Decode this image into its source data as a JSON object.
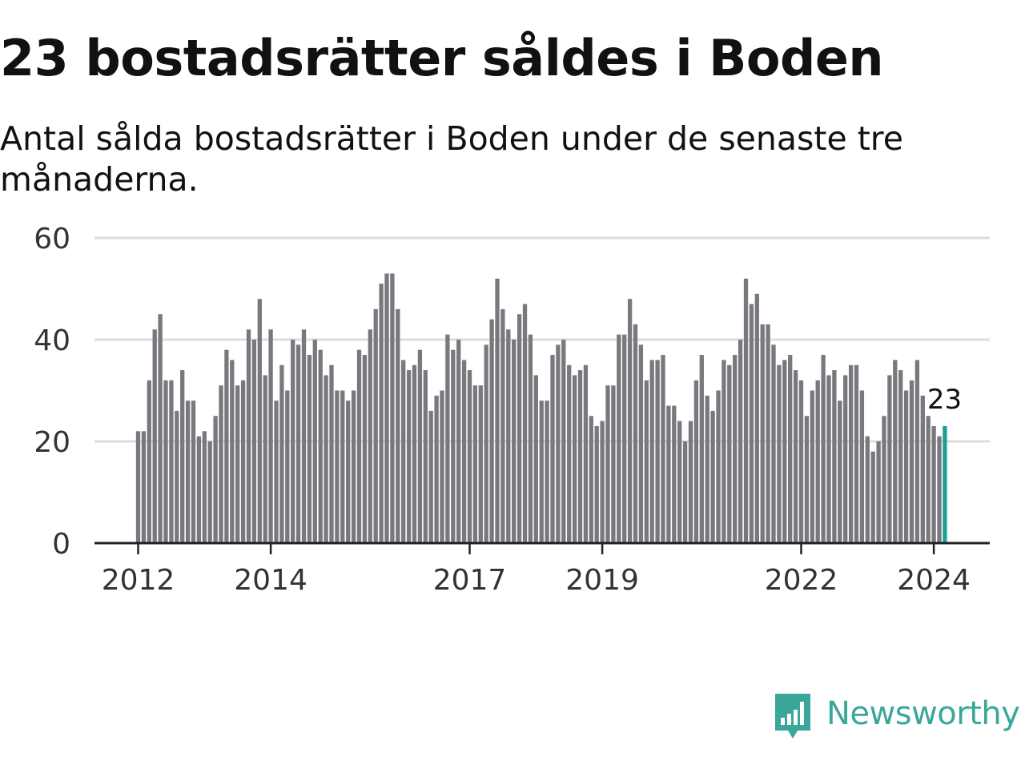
{
  "header": {
    "title": "23 bostadsrätter såldes i Boden",
    "subtitle": "Antal sålda bostadsrätter i Boden under de senaste tre månaderna."
  },
  "logo": {
    "text": "Newsworthy",
    "icon": "newsworthy-logo-icon"
  },
  "colors": {
    "bar": "#79787e",
    "highlight": "#1aa195",
    "grid": "#dddddd",
    "axis": "#222222",
    "brand": "#3aa79a"
  },
  "chart_data": {
    "type": "bar",
    "title": "23 bostadsrätter såldes i Boden",
    "subtitle": "Antal sålda bostadsrätter i Boden under de senaste tre månaderna.",
    "xlabel": "",
    "ylabel": "",
    "ylim": [
      0,
      60
    ],
    "y_ticks": [
      0,
      20,
      40,
      60
    ],
    "x_tick_labels": [
      "2012",
      "2014",
      "2017",
      "2019",
      "2022",
      "2024"
    ],
    "x_tick_index": [
      0,
      24,
      60,
      84,
      120,
      144
    ],
    "grid": true,
    "highlight_index": 146,
    "annotation": "23",
    "values": [
      22,
      22,
      32,
      42,
      45,
      32,
      32,
      26,
      34,
      28,
      28,
      21,
      22,
      20,
      25,
      31,
      38,
      36,
      31,
      32,
      42,
      40,
      48,
      33,
      42,
      28,
      35,
      30,
      40,
      39,
      42,
      37,
      40,
      38,
      33,
      35,
      30,
      30,
      28,
      30,
      38,
      37,
      42,
      46,
      51,
      53,
      53,
      46,
      36,
      34,
      35,
      38,
      34,
      26,
      29,
      30,
      41,
      38,
      40,
      36,
      34,
      31,
      31,
      39,
      44,
      52,
      46,
      42,
      40,
      45,
      47,
      41,
      33,
      28,
      28,
      37,
      39,
      40,
      35,
      33,
      34,
      35,
      25,
      23,
      24,
      31,
      31,
      41,
      41,
      48,
      43,
      39,
      32,
      36,
      36,
      37,
      27,
      27,
      24,
      20,
      24,
      32,
      37,
      29,
      26,
      30,
      36,
      35,
      37,
      40,
      52,
      47,
      49,
      43,
      43,
      39,
      35,
      36,
      37,
      34,
      32,
      25,
      30,
      32,
      37,
      33,
      34,
      28,
      33,
      35,
      35,
      30,
      21,
      18,
      20,
      25,
      33,
      36,
      34,
      30,
      32,
      36,
      29,
      25,
      23,
      21,
      23
    ]
  }
}
